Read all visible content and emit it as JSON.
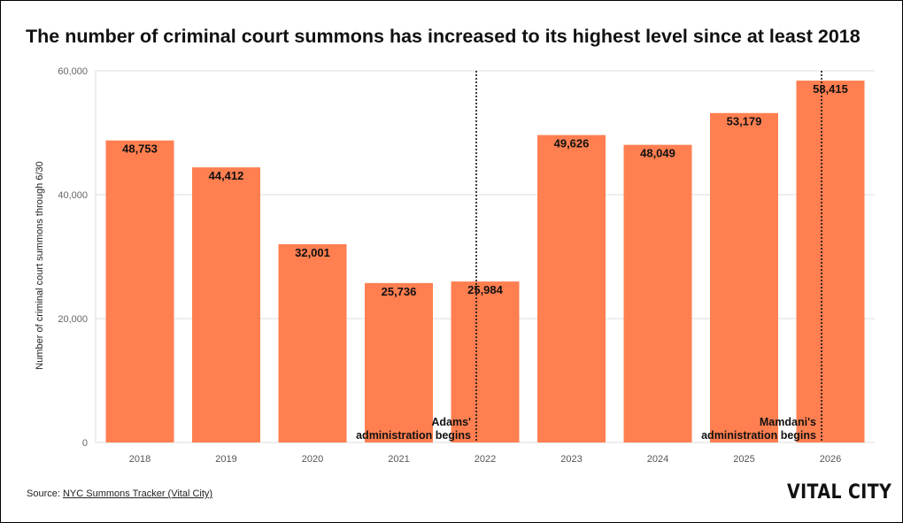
{
  "title": "The number of criminal court summons has increased to its highest level since at least 2018",
  "source": {
    "label": "Source: ",
    "link_text": "NYC Summons Tracker (Vital City)"
  },
  "logo_text": "VITAL CITY",
  "chart_data": {
    "type": "bar",
    "categories": [
      "2018",
      "2019",
      "2020",
      "2021",
      "2022",
      "2023",
      "2024",
      "2025",
      "2026"
    ],
    "values": [
      48753,
      44412,
      32001,
      25736,
      25984,
      49626,
      48049,
      53179,
      58415
    ],
    "value_labels": [
      "48,753",
      "44,412",
      "32,001",
      "25,736",
      "25,984",
      "49,626",
      "48,049",
      "53,179",
      "58,415"
    ],
    "ylabel": "Number of criminal court summons through 6/30",
    "xlabel": "",
    "ylim": [
      0,
      60000
    ],
    "yticks": [
      0,
      20000,
      40000,
      60000
    ],
    "ytick_labels": [
      "0",
      "20,000",
      "40,000",
      "60,000"
    ],
    "grid": true,
    "bar_color": "#FF7F50",
    "annotations": [
      {
        "category": "2022",
        "lines": [
          "Adams'",
          "administration begins"
        ]
      },
      {
        "category": "2026",
        "lines": [
          "Mamdani's",
          "administration begins"
        ]
      }
    ]
  }
}
